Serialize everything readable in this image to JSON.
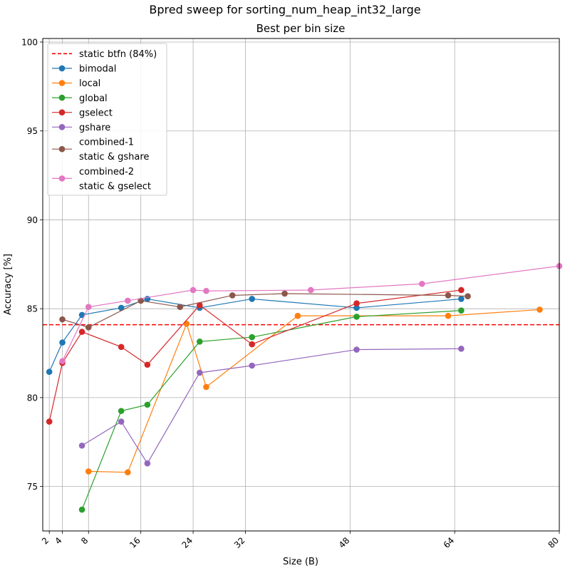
{
  "chart_data": {
    "type": "line",
    "title": "Bpred sweep for sorting_num_heap_int32_large",
    "subtitle": "Best per bin size",
    "xlabel": "Size (B)",
    "ylabel": "Accuracy [%]",
    "xlim": [
      1,
      80
    ],
    "ylim": [
      72.5,
      100.2
    ],
    "xticks": [
      2,
      4,
      8,
      16,
      24,
      32,
      48,
      64,
      80
    ],
    "xtick_labels": [
      "2",
      "4",
      "8",
      "16",
      "24",
      "32",
      "48",
      "64",
      "80"
    ],
    "yticks": [
      75,
      80,
      85,
      90,
      95,
      100
    ],
    "ytick_labels": [
      "75",
      "80",
      "85",
      "90",
      "95",
      "100"
    ],
    "grid": true,
    "legend_position": "upper-left",
    "reference_line": {
      "label": "static btfn (84%)",
      "y": 84.1,
      "color": "#ff0000",
      "style": "dashed"
    },
    "series": [
      {
        "name": "bimodal",
        "color": "#1f77b4",
        "x": [
          2,
          4,
          7,
          13,
          17,
          25,
          33,
          49,
          65
        ],
        "y": [
          81.45,
          83.1,
          84.65,
          85.05,
          85.55,
          85.05,
          85.55,
          85.05,
          85.55
        ]
      },
      {
        "name": "local",
        "color": "#ff7f0e",
        "x": [
          8,
          14,
          23,
          26,
          40,
          63,
          77
        ],
        "y": [
          75.85,
          75.8,
          84.15,
          80.6,
          84.6,
          84.6,
          84.95
        ]
      },
      {
        "name": "global",
        "color": "#2ca02c",
        "x": [
          7,
          13,
          17,
          25,
          33,
          49,
          65
        ],
        "y": [
          73.7,
          79.25,
          79.6,
          83.15,
          83.4,
          84.55,
          84.9
        ]
      },
      {
        "name": "gselect",
        "color": "#d62728",
        "x": [
          2,
          4,
          7,
          13,
          17,
          25,
          33,
          49,
          65
        ],
        "y": [
          78.65,
          81.95,
          83.7,
          82.85,
          81.85,
          85.2,
          83.0,
          85.3,
          86.05
        ]
      },
      {
        "name": "gshare",
        "color": "#9467bd",
        "x": [
          7,
          13,
          17,
          25,
          33,
          49,
          65
        ],
        "y": [
          77.3,
          78.65,
          76.3,
          81.4,
          81.8,
          82.7,
          82.75
        ]
      },
      {
        "name": "combined-1\nstatic & gshare",
        "color": "#8c564b",
        "x": [
          4,
          8,
          16,
          22,
          30,
          38,
          63,
          66
        ],
        "y": [
          84.4,
          83.95,
          85.45,
          85.1,
          85.75,
          85.85,
          85.75,
          85.7
        ]
      },
      {
        "name": "combined-2\nstatic & gselect",
        "color": "#e377c2",
        "x": [
          4,
          8,
          14,
          24,
          26,
          42,
          59,
          80
        ],
        "y": [
          82.05,
          85.1,
          85.45,
          86.05,
          86.0,
          86.05,
          86.4,
          87.4
        ]
      }
    ]
  }
}
